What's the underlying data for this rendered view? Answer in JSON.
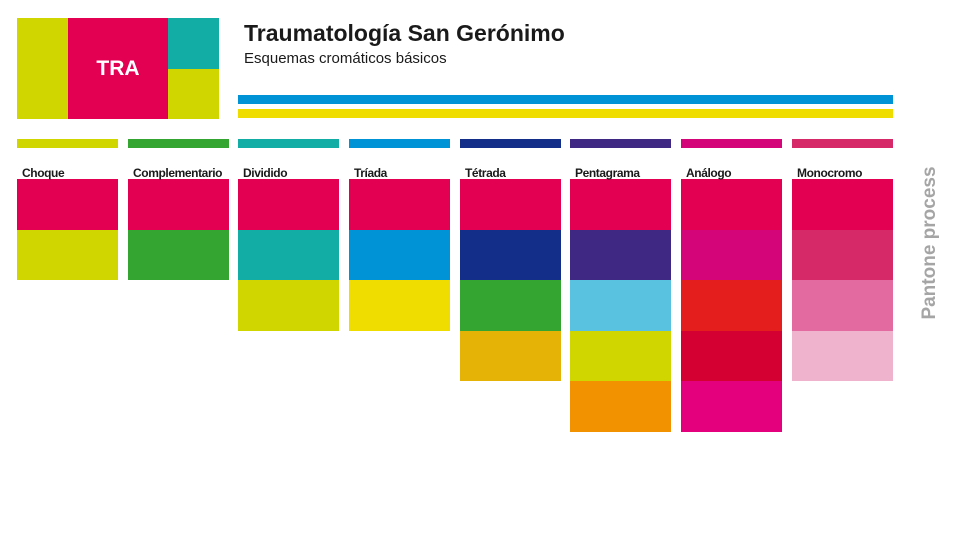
{
  "logo": {
    "text": "TRA",
    "colors": [
      "#cfd600",
      "#e30052",
      "#12aea6",
      "#cfd600"
    ]
  },
  "header": {
    "title": "Traumatología San Gerónimo",
    "subtitle": "Esquemas cromáticos básicos"
  },
  "bars": [
    "#0094d7",
    "#f0dd00"
  ],
  "side_label": "Pantone process",
  "schemes": [
    {
      "label": "Choque",
      "bar": "#cfd600",
      "swatches": [
        "#e30052",
        "#cfd600"
      ]
    },
    {
      "label": "Complementario",
      "bar": "#35a532",
      "swatches": [
        "#e30052",
        "#35a532"
      ]
    },
    {
      "label": "Dividido",
      "bar": "#12aea6",
      "swatches": [
        "#e30052",
        "#12aea6",
        "#cfd600"
      ]
    },
    {
      "label": "Tríada",
      "bar": "#0094d7",
      "swatches": [
        "#e30052",
        "#0094d7",
        "#f0dd00"
      ]
    },
    {
      "label": "Tétrada",
      "bar": "#132e88",
      "swatches": [
        "#e30052",
        "#132e88",
        "#35a532",
        "#e5b306"
      ]
    },
    {
      "label": "Pentagrama",
      "bar": "#3e2884",
      "swatches": [
        "#e30052",
        "#3e2884",
        "#5ac2e1",
        "#cfd600",
        "#f29200"
      ]
    },
    {
      "label": "Análogo",
      "bar": "#d30579",
      "swatches": [
        "#e30052",
        "#d30579",
        "#e31e1d",
        "#d50032",
        "#e4007c"
      ]
    },
    {
      "label": "Monocromo",
      "bar": "#d62a68",
      "swatches": [
        "#e30052",
        "#d62a68",
        "#e26aa0",
        "#efb3ce"
      ]
    }
  ]
}
